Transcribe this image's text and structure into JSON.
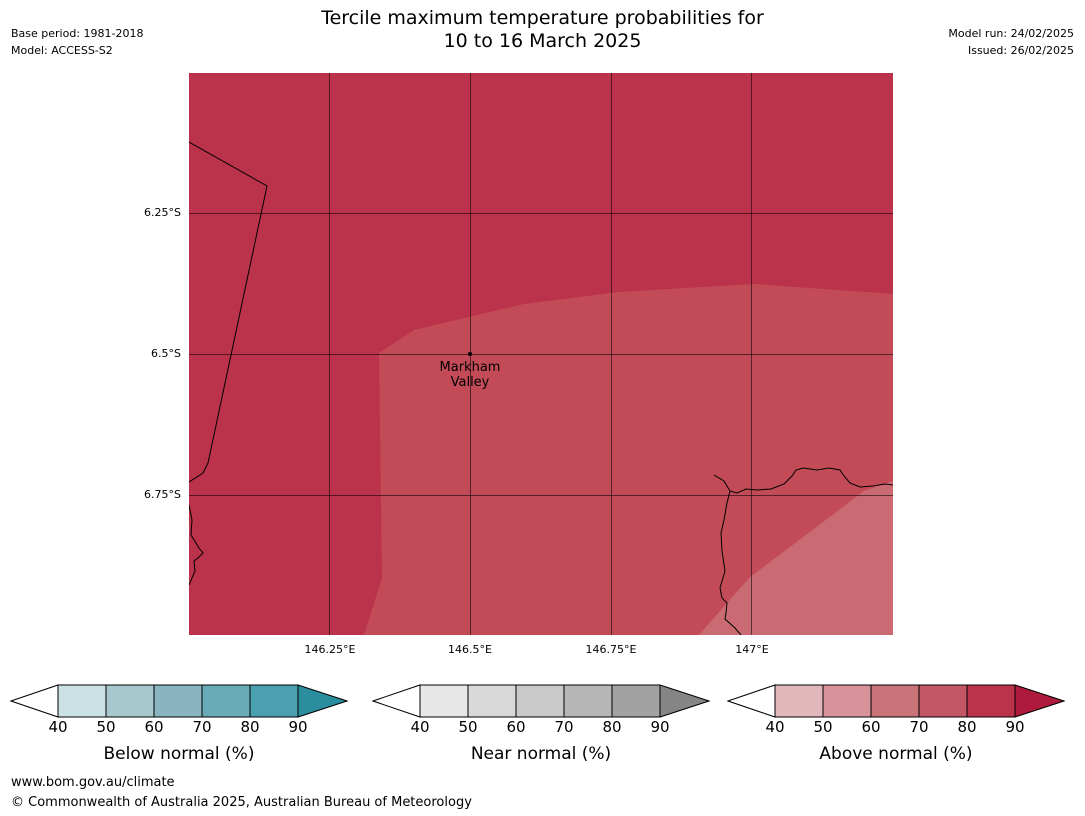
{
  "header": {
    "title_line1": "Tercile maximum temperature probabilities for",
    "title_line2": "10 to 16 March 2025",
    "base_period": "Base period: 1981-2018",
    "model": "Model: ACCESS-S2",
    "model_run": "Model run: 24/02/2025",
    "issued": "Issued: 26/02/2025"
  },
  "map": {
    "lat_labels": [
      "6.25°S",
      "6.5°S",
      "6.75°S"
    ],
    "lon_labels": [
      "146.25°E",
      "146.5°E",
      "146.75°E",
      "147°E"
    ],
    "place": {
      "name_line1": "Markham",
      "name_line2": "Valley",
      "icon": "location-dot-icon"
    },
    "colors": {
      "above_80_90": "#bb334b",
      "above_70_80": "#c24b57",
      "above_60_70": "#ca6b73"
    }
  },
  "colorbars": [
    {
      "label": "Below normal (%)",
      "ticks": [
        "40",
        "50",
        "60",
        "70",
        "80",
        "90"
      ],
      "colors": [
        "#cae2e6",
        "#a7c8cd",
        "#88b5c0",
        "#6aabb8",
        "#4aa0af",
        "#2a8e9e"
      ]
    },
    {
      "label": "Near normal (%)",
      "ticks": [
        "40",
        "50",
        "60",
        "70",
        "80",
        "90"
      ],
      "colors": [
        "#e7e7e7",
        "#d9d9d9",
        "#c9c9c9",
        "#b6b6b6",
        "#a2a2a2",
        "#858585"
      ]
    },
    {
      "label": "Above normal (%)",
      "ticks": [
        "40",
        "50",
        "60",
        "70",
        "80",
        "90"
      ],
      "colors": [
        "#e2b7bc",
        "#d8939b",
        "#ca747a",
        "#c45765",
        "#bb334b",
        "#ae1a3b"
      ]
    }
  ],
  "footer": {
    "url": "www.bom.gov.au/climate",
    "copyright": "© Commonwealth of Australia 2025, Australian Bureau of Meteorology"
  }
}
